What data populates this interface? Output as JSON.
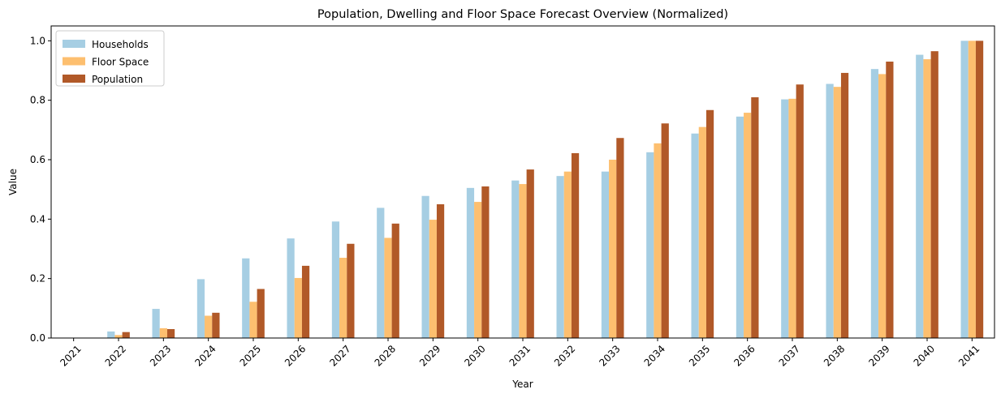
{
  "chart_data": {
    "type": "bar",
    "title": "Population, Dwelling and Floor Space Forecast Overview (Normalized)",
    "xlabel": "Year",
    "ylabel": "Value",
    "ylim": [
      0,
      1.05
    ],
    "yticks": [
      "0.0",
      "0.2",
      "0.4",
      "0.6",
      "0.8",
      "1.0"
    ],
    "grid": false,
    "legend_position": "top-left",
    "categories": [
      "2021",
      "2022",
      "2023",
      "2024",
      "2025",
      "2026",
      "2027",
      "2028",
      "2029",
      "2030",
      "2031",
      "2032",
      "2033",
      "2034",
      "2035",
      "2036",
      "2037",
      "2038",
      "2039",
      "2040",
      "2041"
    ],
    "series": [
      {
        "name": "Households",
        "color": "#a6cee3",
        "values": [
          0.0,
          0.022,
          0.098,
          0.198,
          0.268,
          0.335,
          0.392,
          0.438,
          0.478,
          0.505,
          0.53,
          0.545,
          0.56,
          0.625,
          0.688,
          0.745,
          0.803,
          0.855,
          0.905,
          0.953,
          1.0
        ]
      },
      {
        "name": "Floor Space",
        "color": "#fdbf6f",
        "values": [
          0.0,
          0.01,
          0.033,
          0.075,
          0.122,
          0.202,
          0.27,
          0.337,
          0.398,
          0.458,
          0.518,
          0.56,
          0.6,
          0.655,
          0.71,
          0.758,
          0.805,
          0.845,
          0.888,
          0.938,
          1.0
        ]
      },
      {
        "name": "Population",
        "color": "#b15928",
        "values": [
          0.0,
          0.02,
          0.03,
          0.085,
          0.165,
          0.243,
          0.317,
          0.385,
          0.45,
          0.51,
          0.567,
          0.622,
          0.673,
          0.722,
          0.767,
          0.81,
          0.853,
          0.892,
          0.93,
          0.965,
          1.0
        ]
      }
    ]
  }
}
